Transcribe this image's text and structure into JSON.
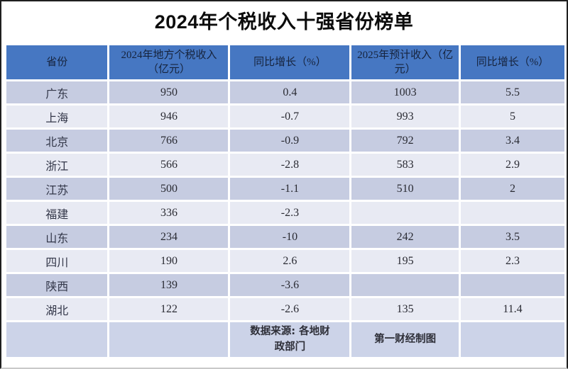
{
  "title": "2024年个税收入十强省份榜单",
  "colors": {
    "header_bg": "#4677c2",
    "header_text": "#16233c",
    "row_odd_bg": "#c6cce1",
    "row_even_bg": "#e8eaf3",
    "footer_bg": "#ccd3e8",
    "cell_text": "#2a2b33",
    "title_text": "#0c0c0c"
  },
  "chart_data": {
    "type": "table",
    "title": "2024年个税收入十强省份榜单",
    "columns": [
      "省份",
      "2024年地方个税收入（亿元）",
      "同比增长（%）",
      "2025年预计收入（亿元）",
      "同比增长（%）"
    ],
    "rows": [
      [
        "广东",
        "950",
        "0.4",
        "1003",
        "5.5"
      ],
      [
        "上海",
        "946",
        "-0.7",
        "993",
        "5"
      ],
      [
        "北京",
        "766",
        "-0.9",
        "792",
        "3.4"
      ],
      [
        "浙江",
        "566",
        "-2.8",
        "583",
        "2.9"
      ],
      [
        "江苏",
        "500",
        "-1.1",
        "510",
        "2"
      ],
      [
        "福建",
        "336",
        "-2.3",
        "",
        ""
      ],
      [
        "山东",
        "234",
        "-10",
        "242",
        "3.5"
      ],
      [
        "四川",
        "190",
        "2.6",
        "195",
        "2.3"
      ],
      [
        "陕西",
        "139",
        "-3.6",
        "",
        ""
      ],
      [
        "湖北",
        "122",
        "-2.6",
        "135",
        "11.4"
      ]
    ],
    "footer": [
      "",
      "",
      "数据来源: 各地财政部门",
      "第一财经制图",
      ""
    ],
    "layout": {
      "grid": "alternating-row-shading",
      "legend": "none"
    }
  }
}
